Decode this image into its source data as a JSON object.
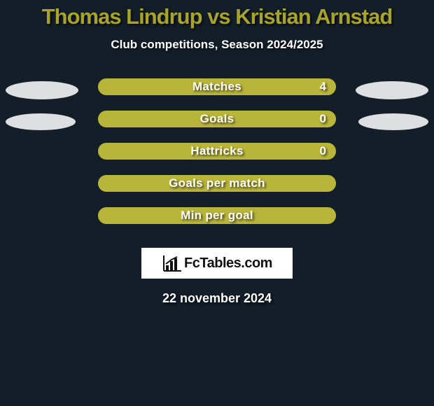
{
  "background_color": "#131e29",
  "title": {
    "text": "Thomas Lindrup vs Kristian Arnstad",
    "color": "#a7a32b",
    "fontsize": 31
  },
  "subtitle": {
    "text": "Club competitions, Season 2024/2025",
    "color": "#ffffff",
    "fontsize": 17
  },
  "bar_style": {
    "track_color": "#a7a32b",
    "fill_color": "#b9b53a",
    "label_color": "#ffffff",
    "value_color": "#ffffff",
    "label_fontsize": 17,
    "value_fontsize": 17,
    "track_width": 340,
    "track_height": 24,
    "radius": 12
  },
  "ellipse_style": {
    "color": "#f0f0f0",
    "width": 104,
    "height": 26
  },
  "rows": [
    {
      "label": "Matches",
      "value": "4",
      "fill_pct": 100,
      "left_ellipse": true,
      "right_ellipse": true,
      "ellipse_w": 104,
      "ellipse_h": 26
    },
    {
      "label": "Goals",
      "value": "0",
      "fill_pct": 100,
      "left_ellipse": true,
      "right_ellipse": true,
      "ellipse_w": 100,
      "ellipse_h": 24
    },
    {
      "label": "Hattricks",
      "value": "0",
      "fill_pct": 100,
      "left_ellipse": false,
      "right_ellipse": false
    },
    {
      "label": "Goals per match",
      "value": "",
      "fill_pct": 100,
      "left_ellipse": false,
      "right_ellipse": false
    },
    {
      "label": "Min per goal",
      "value": "",
      "fill_pct": 100,
      "left_ellipse": false,
      "right_ellipse": false
    }
  ],
  "logo": {
    "text": "FcTables.com",
    "icon_color": "#111111"
  },
  "date": {
    "text": "22 november 2024",
    "color": "#ffffff",
    "fontsize": 18
  }
}
